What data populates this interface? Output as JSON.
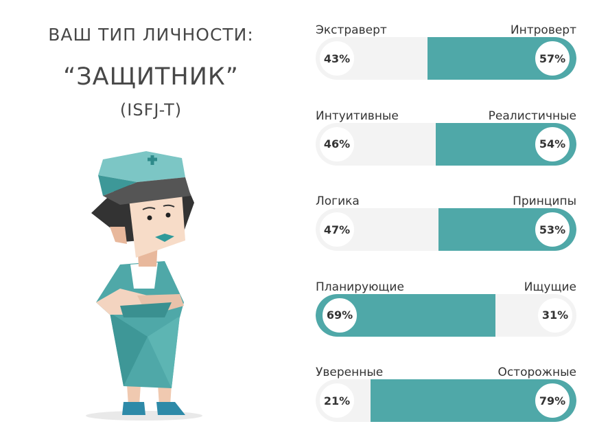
{
  "header": {
    "line1": "ВАШ ТИП ЛИЧНОСТИ:",
    "line2": "“ЗАЩИТНИК”",
    "line3": "(ISFJ-T)"
  },
  "colors": {
    "accent": "#4fa8a8",
    "track": "#f3f3f3"
  },
  "chart_data": {
    "type": "bar",
    "orientation": "horizontal-stacked",
    "categories": [
      {
        "left": "Экстраверт",
        "right": "Интроверт",
        "left_value": 43,
        "right_value": 57,
        "left_label": "43%",
        "right_label": "57%"
      },
      {
        "left": "Интуитивные",
        "right": "Реалистичные",
        "left_value": 46,
        "right_value": 54,
        "left_label": "46%",
        "right_label": "54%"
      },
      {
        "left": "Логика",
        "right": "Принципы",
        "left_value": 47,
        "right_value": 53,
        "left_label": "47%",
        "right_label": "53%"
      },
      {
        "left": "Планирующие",
        "right": "Ищущие",
        "left_value": 69,
        "right_value": 31,
        "left_label": "69%",
        "right_label": "31%"
      },
      {
        "left": "Уверенные",
        "right": "Осторожные",
        "left_value": 21,
        "right_value": 79,
        "left_label": "21%",
        "right_label": "79%"
      }
    ],
    "dominant": [
      "right",
      "right",
      "right",
      "left",
      "right"
    ],
    "xlim": [
      0,
      100
    ]
  }
}
